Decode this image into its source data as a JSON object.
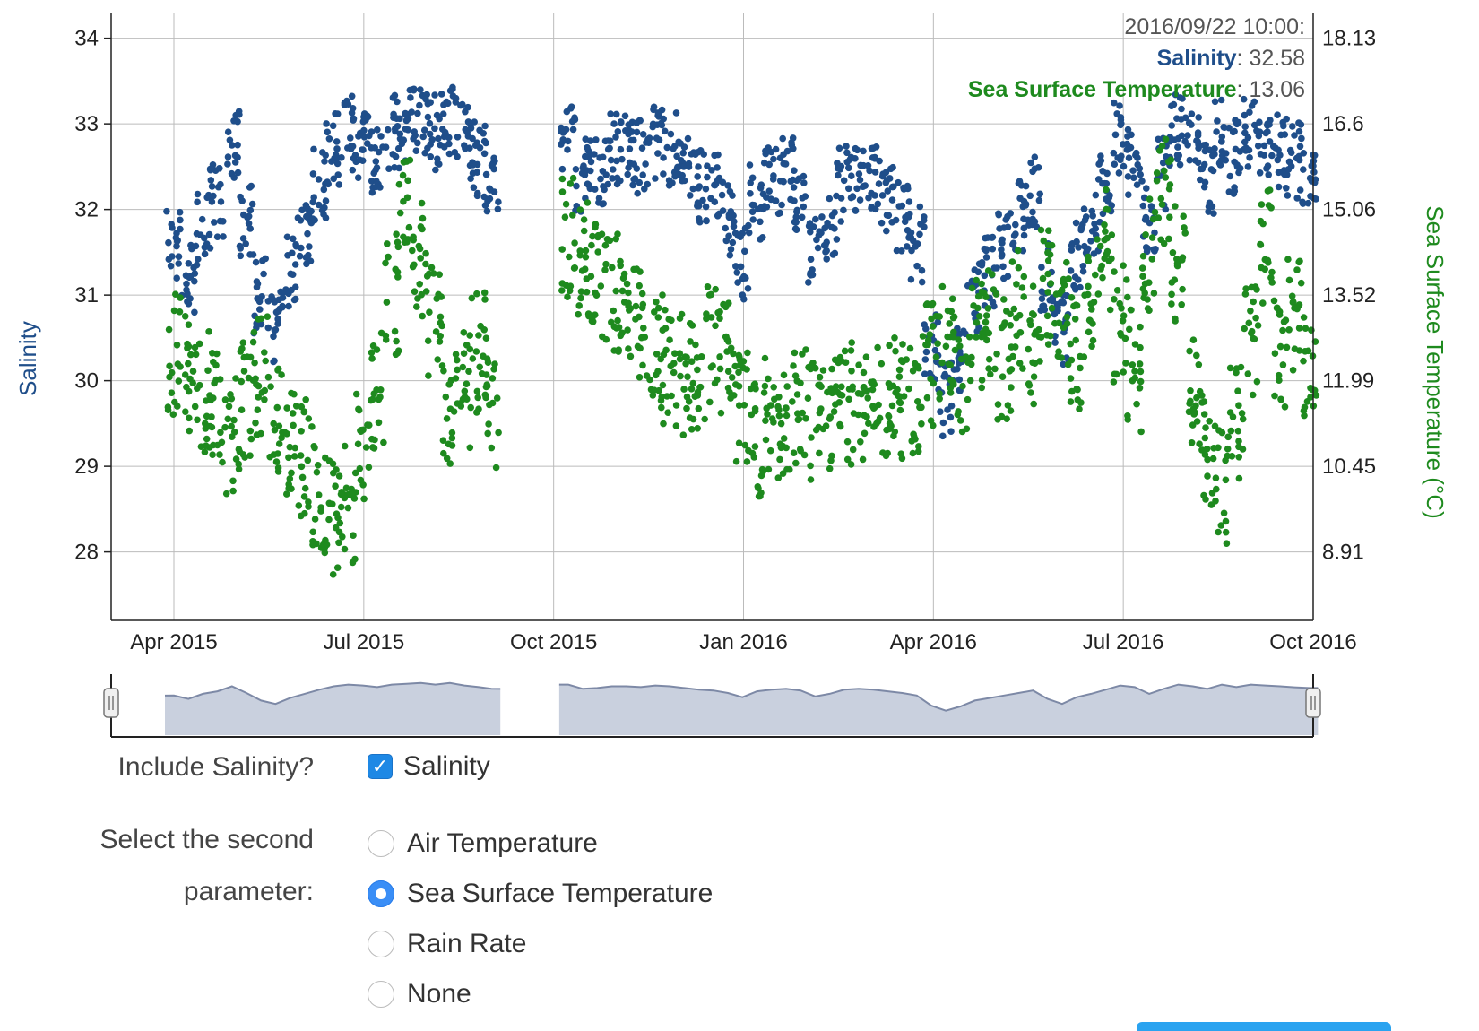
{
  "chart_data": {
    "type": "scatter",
    "x_range": [
      "2015-04-01",
      "2016-10-01"
    ],
    "x_ticks": [
      "Apr 2015",
      "Jul 2015",
      "Oct 2015",
      "Jan 2016",
      "Apr 2016",
      "Jul 2016",
      "Oct 2016"
    ],
    "y_left": {
      "label": "Salinity",
      "ticks": [
        "28",
        "29",
        "30",
        "31",
        "32",
        "33",
        "34"
      ],
      "range": [
        27.2,
        34.3
      ]
    },
    "y_right": {
      "label": "Sea Surface Temperature (°C)",
      "ticks": [
        "8.91",
        "10.45",
        "11.99",
        "13.52",
        "15.06",
        "16.6",
        "18.13"
      ],
      "range": [
        7.55,
        18.6
      ]
    },
    "grid": true,
    "series": [
      {
        "name": "Salinity",
        "color": "#1f4e8a",
        "points": [
          [
            "2015-04-01",
            31.6
          ],
          [
            "2015-04-08",
            31.2
          ],
          [
            "2015-04-15",
            31.8
          ],
          [
            "2015-04-22",
            32.1
          ],
          [
            "2015-04-29",
            32.7
          ],
          [
            "2015-05-06",
            31.9
          ],
          [
            "2015-05-13",
            31.0
          ],
          [
            "2015-05-20",
            30.6
          ],
          [
            "2015-05-27",
            31.3
          ],
          [
            "2015-06-03",
            31.8
          ],
          [
            "2015-06-10",
            32.3
          ],
          [
            "2015-06-17",
            32.7
          ],
          [
            "2015-06-24",
            32.9
          ],
          [
            "2015-07-01",
            32.8
          ],
          [
            "2015-07-08",
            32.6
          ],
          [
            "2015-07-15",
            32.9
          ],
          [
            "2015-07-22",
            33.0
          ],
          [
            "2015-07-29",
            33.1
          ],
          [
            "2015-08-05",
            32.9
          ],
          [
            "2015-08-12",
            33.1
          ],
          [
            "2015-08-19",
            32.8
          ],
          [
            "2015-08-26",
            32.6
          ],
          [
            "2015-09-01",
            32.4
          ],
          [
            "2015-10-08",
            32.9
          ],
          [
            "2015-10-15",
            32.4
          ],
          [
            "2015-10-22",
            32.5
          ],
          [
            "2015-10-29",
            32.7
          ],
          [
            "2015-11-05",
            32.7
          ],
          [
            "2015-11-12",
            32.6
          ],
          [
            "2015-11-19",
            32.8
          ],
          [
            "2015-11-26",
            32.7
          ],
          [
            "2015-12-03",
            32.5
          ],
          [
            "2015-12-10",
            32.3
          ],
          [
            "2015-12-17",
            32.2
          ],
          [
            "2015-12-24",
            31.9
          ],
          [
            "2015-12-31",
            31.4
          ],
          [
            "2016-01-07",
            32.1
          ],
          [
            "2016-01-14",
            32.3
          ],
          [
            "2016-01-21",
            32.4
          ],
          [
            "2016-01-28",
            32.2
          ],
          [
            "2016-02-04",
            31.5
          ],
          [
            "2016-02-11",
            31.8
          ],
          [
            "2016-02-18",
            32.3
          ],
          [
            "2016-02-25",
            32.4
          ],
          [
            "2016-03-03",
            32.3
          ],
          [
            "2016-03-10",
            32.1
          ],
          [
            "2016-03-17",
            31.9
          ],
          [
            "2016-03-24",
            31.6
          ],
          [
            "2016-03-31",
            30.4
          ],
          [
            "2016-04-07",
            29.8
          ],
          [
            "2016-04-14",
            30.3
          ],
          [
            "2016-04-21",
            31.0
          ],
          [
            "2016-04-28",
            31.3
          ],
          [
            "2016-05-05",
            31.6
          ],
          [
            "2016-05-12",
            31.9
          ],
          [
            "2016-05-19",
            32.2
          ],
          [
            "2016-05-26",
            31.2
          ],
          [
            "2016-06-02",
            30.6
          ],
          [
            "2016-06-09",
            31.4
          ],
          [
            "2016-06-16",
            31.8
          ],
          [
            "2016-06-23",
            32.3
          ],
          [
            "2016-06-30",
            32.8
          ],
          [
            "2016-07-07",
            32.6
          ],
          [
            "2016-07-14",
            31.8
          ],
          [
            "2016-07-21",
            32.4
          ],
          [
            "2016-07-28",
            32.9
          ],
          [
            "2016-08-04",
            32.7
          ],
          [
            "2016-08-11",
            32.4
          ],
          [
            "2016-08-18",
            32.9
          ],
          [
            "2016-08-25",
            32.6
          ],
          [
            "2016-09-01",
            32.9
          ],
          [
            "2016-09-08",
            32.8
          ],
          [
            "2016-09-15",
            32.7
          ],
          [
            "2016-09-22",
            32.58
          ],
          [
            "2016-09-29",
            32.5
          ]
        ]
      },
      {
        "name": "Sea Surface Temperature",
        "color": "#1e8a1e",
        "points": [
          [
            "2015-04-01",
            12.4
          ],
          [
            "2015-04-08",
            12.1
          ],
          [
            "2015-04-15",
            11.7
          ],
          [
            "2015-04-22",
            11.3
          ],
          [
            "2015-04-29",
            10.9
          ],
          [
            "2015-05-06",
            11.6
          ],
          [
            "2015-05-13",
            12.0
          ],
          [
            "2015-05-20",
            11.2
          ],
          [
            "2015-05-27",
            10.9
          ],
          [
            "2015-06-03",
            10.5
          ],
          [
            "2015-06-10",
            9.9
          ],
          [
            "2015-06-17",
            9.4
          ],
          [
            "2015-06-24",
            9.7
          ],
          [
            "2015-07-01",
            10.6
          ],
          [
            "2015-07-08",
            11.8
          ],
          [
            "2015-07-15",
            13.5
          ],
          [
            "2015-07-22",
            14.8
          ],
          [
            "2015-07-29",
            14.2
          ],
          [
            "2015-08-05",
            13.0
          ],
          [
            "2015-08-12",
            11.3
          ],
          [
            "2015-08-19",
            11.7
          ],
          [
            "2015-08-26",
            12.4
          ],
          [
            "2015-09-01",
            11.4
          ],
          [
            "2015-10-08",
            14.5
          ],
          [
            "2015-10-15",
            14.1
          ],
          [
            "2015-10-22",
            13.7
          ],
          [
            "2015-10-29",
            13.5
          ],
          [
            "2015-11-05",
            13.3
          ],
          [
            "2015-11-12",
            12.9
          ],
          [
            "2015-11-19",
            12.5
          ],
          [
            "2015-11-26",
            12.2
          ],
          [
            "2015-12-03",
            12.0
          ],
          [
            "2015-12-10",
            12.1
          ],
          [
            "2015-12-17",
            12.5
          ],
          [
            "2015-12-24",
            12.2
          ],
          [
            "2015-12-31",
            11.3
          ],
          [
            "2016-01-07",
            10.9
          ],
          [
            "2016-01-14",
            11.2
          ],
          [
            "2016-01-21",
            11.3
          ],
          [
            "2016-01-28",
            11.4
          ],
          [
            "2016-02-04",
            11.2
          ],
          [
            "2016-02-11",
            11.3
          ],
          [
            "2016-02-18",
            11.4
          ],
          [
            "2016-02-25",
            11.5
          ],
          [
            "2016-03-03",
            11.5
          ],
          [
            "2016-03-10",
            11.6
          ],
          [
            "2016-03-17",
            11.5
          ],
          [
            "2016-03-24",
            11.6
          ],
          [
            "2016-03-31",
            12.2
          ],
          [
            "2016-04-07",
            12.5
          ],
          [
            "2016-04-14",
            12.1
          ],
          [
            "2016-04-21",
            12.7
          ],
          [
            "2016-04-28",
            12.9
          ],
          [
            "2016-05-05",
            12.3
          ],
          [
            "2016-05-12",
            13.2
          ],
          [
            "2016-05-19",
            12.6
          ],
          [
            "2016-05-26",
            13.6
          ],
          [
            "2016-06-02",
            13.1
          ],
          [
            "2016-06-09",
            12.5
          ],
          [
            "2016-06-16",
            13.4
          ],
          [
            "2016-06-23",
            14.3
          ],
          [
            "2016-06-30",
            12.9
          ],
          [
            "2016-07-07",
            12.1
          ],
          [
            "2016-07-14",
            14.2
          ],
          [
            "2016-07-21",
            15.3
          ],
          [
            "2016-07-28",
            14.0
          ],
          [
            "2016-08-04",
            11.8
          ],
          [
            "2016-08-11",
            10.6
          ],
          [
            "2016-08-18",
            10.0
          ],
          [
            "2016-08-25",
            11.2
          ],
          [
            "2016-09-01",
            12.6
          ],
          [
            "2016-09-08",
            14.3
          ],
          [
            "2016-09-15",
            12.4
          ],
          [
            "2016-09-22",
            13.06
          ],
          [
            "2016-09-29",
            12.0
          ]
        ]
      }
    ]
  },
  "legend": {
    "datetime": "2016/09/22 10:00:",
    "rows": [
      {
        "name": "Salinity",
        "value": ": 32.58",
        "color": "#1f4e8a"
      },
      {
        "name": "Sea Surface Temperature",
        "value": ": 13.06",
        "color": "#1e8a1e"
      }
    ]
  },
  "controls": {
    "include_label": "Include Salinity?",
    "salinity_checkbox": {
      "label": "Salinity",
      "checked": true
    },
    "second_label_line1": "Select the second",
    "second_label_line2": "parameter:",
    "options": [
      {
        "label": "Air Temperature",
        "selected": false
      },
      {
        "label": "Sea Surface Temperature",
        "selected": true
      },
      {
        "label": "Rain Rate",
        "selected": false
      },
      {
        "label": "None",
        "selected": false
      }
    ]
  },
  "colors": {
    "salinity": "#1f4e8a",
    "temperature": "#1e8a1e",
    "grid": "#bbbbbb",
    "range_fill": "#c9d0de",
    "range_line": "#7d89a6",
    "accent": "#1e88e5"
  }
}
